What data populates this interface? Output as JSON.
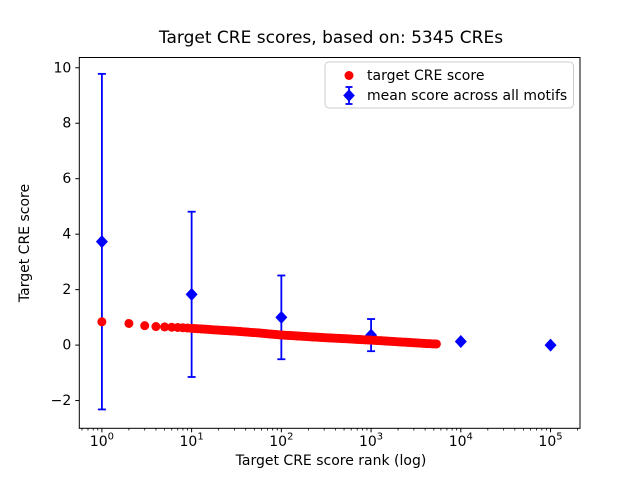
{
  "figure": {
    "background": "#ffffff",
    "spine_color": "#000000"
  },
  "chart_data": {
    "type": "scatter",
    "title": "Target CRE scores, based on: 5345 CREs",
    "xlabel": "Target CRE score rank (log)",
    "ylabel": "Target CRE score",
    "x_scale": "log",
    "xlim": [
      0.56,
      213000
    ],
    "ylim": [
      -3.0,
      10.37
    ],
    "x_tick_exponents": [
      0,
      1,
      2,
      3,
      4,
      5
    ],
    "x_tick_base": "10",
    "y_ticks": [
      -2,
      0,
      2,
      4,
      6,
      8,
      10
    ],
    "y_tick_labels": [
      "−2",
      "0",
      "2",
      "4",
      "6",
      "8",
      "10"
    ],
    "grid": false,
    "legend_position": "upper right",
    "series": [
      {
        "name": "target CRE score",
        "type": "scatter",
        "marker": "circle",
        "color": "#ff0000",
        "points_are_sampled": true,
        "points": [
          [
            1,
            0.84
          ],
          [
            2,
            0.78
          ],
          [
            3,
            0.7
          ],
          [
            4,
            0.67
          ],
          [
            5,
            0.655
          ],
          [
            6,
            0.645
          ],
          [
            7,
            0.635
          ],
          [
            8,
            0.625
          ],
          [
            9,
            0.615
          ],
          [
            10,
            0.605
          ],
          [
            14,
            0.575
          ],
          [
            18,
            0.55
          ],
          [
            25,
            0.52
          ],
          [
            32,
            0.5
          ],
          [
            45,
            0.46
          ],
          [
            56,
            0.44
          ],
          [
            75,
            0.4
          ],
          [
            100,
            0.365
          ],
          [
            133,
            0.34
          ],
          [
            178,
            0.315
          ],
          [
            237,
            0.29
          ],
          [
            316,
            0.265
          ],
          [
            422,
            0.245
          ],
          [
            562,
            0.225
          ],
          [
            750,
            0.2
          ],
          [
            1000,
            0.18
          ],
          [
            1334,
            0.155
          ],
          [
            1778,
            0.13
          ],
          [
            2371,
            0.105
          ],
          [
            3162,
            0.08
          ],
          [
            4200,
            0.055
          ],
          [
            5345,
            0.04
          ]
        ]
      },
      {
        "name": "mean score across all motifs",
        "type": "errorbar",
        "marker": "diamond",
        "color": "#0000ff",
        "x": [
          1,
          10,
          100,
          1000,
          10000,
          100000
        ],
        "y": [
          3.73,
          1.83,
          1.0,
          0.36,
          0.13,
          0.0
        ],
        "yerr": [
          6.05,
          2.98,
          1.51,
          0.58,
          0,
          0
        ]
      }
    ]
  }
}
